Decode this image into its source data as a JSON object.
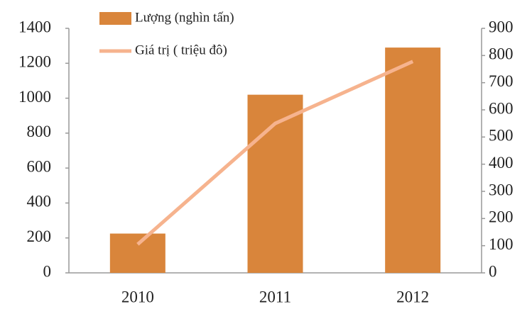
{
  "chart_data": {
    "type": "bar",
    "categories": [
      "2010",
      "2011",
      "2012"
    ],
    "series": [
      {
        "name": "Lượng (nghìn tấn)",
        "type": "bar",
        "color": "#d9853b",
        "values": [
          225,
          1020,
          1290
        ]
      },
      {
        "name": "Giá trị ( triệu đô)",
        "type": "line",
        "color": "#f6b38e",
        "axis": "y2",
        "values": [
          105,
          550,
          778
        ]
      }
    ],
    "ylim": [
      0,
      1400
    ],
    "yticks": [
      0,
      200,
      400,
      600,
      800,
      1000,
      1200,
      1400
    ],
    "y2lim": [
      0,
      900
    ],
    "y2ticks": [
      0,
      100,
      200,
      300,
      400,
      500,
      600,
      700,
      800,
      900
    ],
    "legend": "top"
  }
}
